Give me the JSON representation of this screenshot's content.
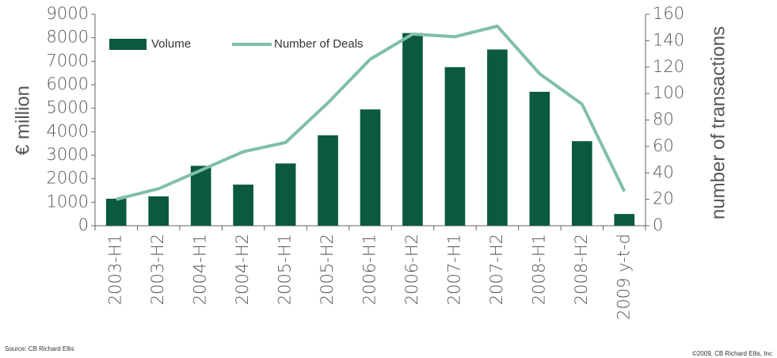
{
  "chart_data": {
    "type": "bar",
    "y_label": "€ million",
    "y2_label": "number of transactions",
    "source": "Source: CB Richard Ellis",
    "copyright": "©2009, CB Richard Ellis, Inc",
    "categories": [
      "2003-H1",
      "2003-H2",
      "2004-H1",
      "2004-H2",
      "2005-H1",
      "2005-H2",
      "2006-H1",
      "2006-H2",
      "2007-H1",
      "2007-H2",
      "2008-H1",
      "2008-H2",
      "2009 y-t-d"
    ],
    "series": [
      {
        "name": "Volume",
        "type": "bar",
        "color": "#0b5a3e",
        "values": [
          1150,
          1250,
          2550,
          1750,
          2650,
          3850,
          4950,
          8200,
          6750,
          7500,
          5700,
          3600,
          500
        ]
      },
      {
        "name": "Number of Deals",
        "type": "line",
        "axis": "y2",
        "color": "#80bfa9",
        "values": [
          20,
          28,
          42,
          56,
          63,
          93,
          126,
          145,
          143,
          151,
          115,
          92,
          26
        ]
      }
    ],
    "ylim": [
      0,
      9000
    ],
    "yticks": [
      0,
      1000,
      2000,
      3000,
      4000,
      5000,
      6000,
      7000,
      8000,
      9000
    ],
    "y2lim": [
      0,
      160
    ],
    "y2ticks": [
      0,
      20,
      40,
      60,
      80,
      100,
      120,
      140,
      160
    ],
    "legend": "top-left"
  }
}
